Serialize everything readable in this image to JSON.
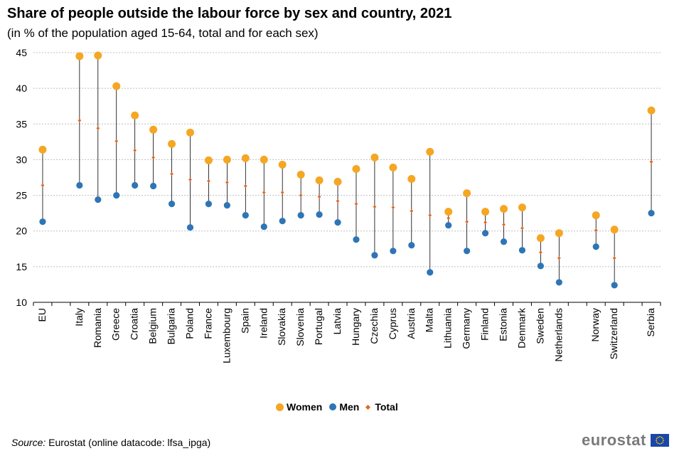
{
  "title": "Share of people outside the labour force by sex and country, 2021",
  "subtitle": "(in % of the population  aged 15-64, total and for each sex)",
  "source_label": "Source:",
  "source_text": " Eurostat (online datacode: lfsa_ipga)",
  "brand": "eurostat",
  "colors": {
    "women": "#f5a623",
    "men": "#2e75b6",
    "total": "#e8651c",
    "line": "#000000",
    "grid": "#bfbfbf"
  },
  "chart_data": {
    "type": "scatter",
    "title": "Share of people outside the labour force by sex and country, 2021",
    "ylim": [
      10,
      45
    ],
    "yticks": [
      10,
      15,
      20,
      25,
      30,
      35,
      40,
      45
    ],
    "categories": [
      "EU",
      "",
      "Italy",
      "Romania",
      "Greece",
      "Croatia",
      "Belgium",
      "Bulgaria",
      "Poland",
      "France",
      "Luxembourg",
      "Spain",
      "Ireland",
      "Slovakia",
      "Slovenia",
      "Portugal",
      "Latvia",
      "Hungary",
      "Czechia",
      "Cyprus",
      "Austria",
      "Malta",
      "Lithuania",
      "Germany",
      "Finland",
      "Estonia",
      "Denmark",
      "Sweden",
      "Netherlands",
      "",
      "Norway",
      "Switzerland",
      "",
      "Serbia"
    ],
    "series": [
      {
        "name": "Women",
        "values": [
          31.4,
          null,
          44.5,
          44.6,
          40.3,
          36.2,
          34.2,
          32.2,
          33.8,
          29.9,
          30.0,
          30.2,
          30.0,
          29.3,
          27.9,
          27.1,
          26.9,
          28.7,
          30.3,
          28.9,
          27.3,
          31.1,
          22.7,
          25.3,
          22.7,
          23.1,
          23.3,
          19.0,
          19.7,
          null,
          22.2,
          20.2,
          null,
          36.9
        ]
      },
      {
        "name": "Men",
        "values": [
          21.3,
          null,
          26.4,
          24.4,
          25.0,
          26.4,
          26.3,
          23.8,
          20.5,
          23.8,
          23.6,
          22.2,
          20.6,
          21.4,
          22.2,
          22.3,
          21.2,
          18.8,
          16.6,
          17.2,
          18.0,
          14.2,
          20.8,
          17.2,
          19.7,
          18.5,
          17.3,
          15.1,
          12.8,
          null,
          17.8,
          12.4,
          null,
          22.5
        ]
      },
      {
        "name": "Total",
        "values": [
          26.4,
          null,
          35.5,
          34.4,
          32.6,
          31.3,
          30.3,
          28.0,
          27.2,
          27.0,
          26.8,
          26.3,
          25.4,
          25.4,
          25.0,
          24.8,
          24.2,
          23.8,
          23.4,
          23.3,
          22.8,
          22.2,
          21.8,
          21.3,
          21.2,
          20.9,
          20.4,
          17.0,
          16.2,
          null,
          20.1,
          16.2,
          null,
          29.7
        ]
      }
    ]
  },
  "legend": [
    {
      "label": "Women",
      "color": "#f5a623"
    },
    {
      "label": "Men",
      "color": "#2e75b6"
    },
    {
      "label": "Total",
      "color": "#e8651c"
    }
  ]
}
